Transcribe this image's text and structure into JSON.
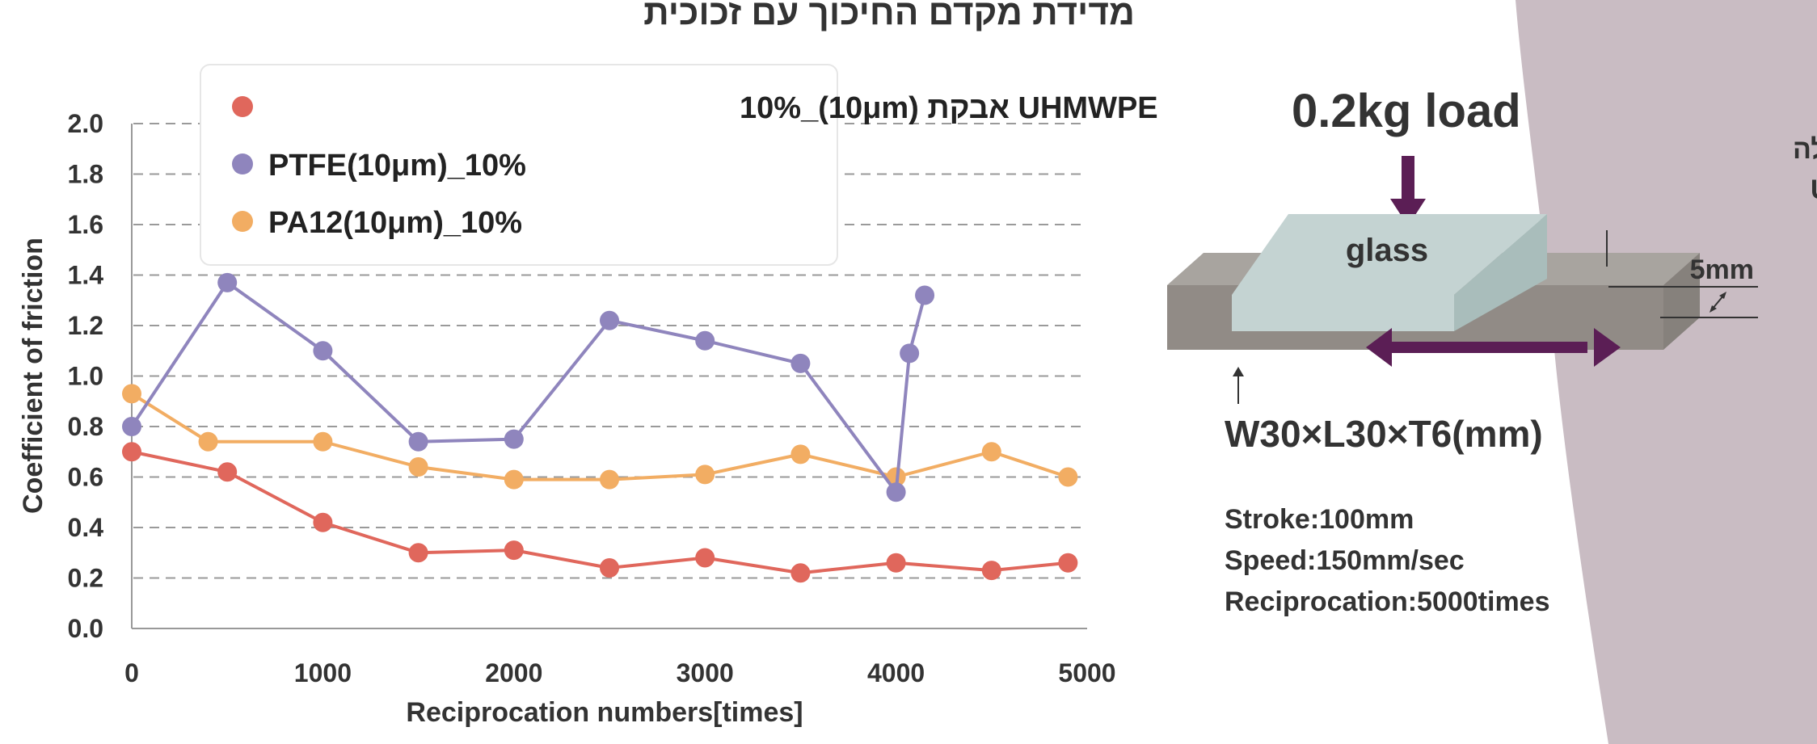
{
  "title": "מדידת מקדם החיכוך עם זכוכית",
  "chart_data": {
    "type": "line",
    "xlabel": "Reciprocation numbers[times]",
    "ylabel": "Coefficient of friction",
    "xlim": [
      0,
      5000
    ],
    "ylim": [
      0,
      2.0
    ],
    "x_ticks": [
      "0",
      "1000",
      "2000",
      "3000",
      "4000",
      "5000"
    ],
    "y_ticks": [
      "0.0",
      "0.2",
      "0.4",
      "0.6",
      "0.8",
      "1.0",
      "1.2",
      "1.4",
      "1.6",
      "1.8",
      "2.0"
    ],
    "grid": "horizontal dashed",
    "legend_position": "top-left",
    "series": [
      {
        "name": "UHMWPE אבקת (10μm)_10%",
        "color": "#e0675c",
        "points": [
          [
            0,
            0.7
          ],
          [
            500,
            0.62
          ],
          [
            1000,
            0.42
          ],
          [
            1500,
            0.3
          ],
          [
            2000,
            0.31
          ],
          [
            2500,
            0.24
          ],
          [
            3000,
            0.28
          ],
          [
            3500,
            0.22
          ],
          [
            4000,
            0.26
          ],
          [
            4500,
            0.23
          ],
          [
            4900,
            0.26
          ]
        ]
      },
      {
        "name": "PTFE(10μm)_10%",
        "color": "#8f85bd",
        "points": [
          [
            0,
            0.8
          ],
          [
            500,
            1.37
          ],
          [
            1000,
            1.1
          ],
          [
            1500,
            0.74
          ],
          [
            2000,
            0.75
          ],
          [
            2500,
            1.22
          ],
          [
            3000,
            1.14
          ],
          [
            3500,
            1.05
          ],
          [
            4000,
            0.54
          ],
          [
            4070,
            1.09
          ],
          [
            4150,
            1.32
          ]
        ]
      },
      {
        "name": "PA12(10μm)_10%",
        "color": "#f2ad63",
        "points": [
          [
            0,
            0.93
          ],
          [
            400,
            0.74
          ],
          [
            1000,
            0.74
          ],
          [
            1500,
            0.64
          ],
          [
            2000,
            0.59
          ],
          [
            2500,
            0.59
          ],
          [
            3000,
            0.61
          ],
          [
            3500,
            0.69
          ],
          [
            4000,
            0.6
          ],
          [
            4500,
            0.7
          ],
          [
            4900,
            0.6
          ]
        ]
      }
    ]
  },
  "diagram": {
    "load_label": "0.2kg load",
    "glass_label": "glass",
    "net_label_line1": "שכבה המכילה",
    "net_label_line2": "תוסף UHMWPE",
    "thickness_label": "5mm",
    "dimension_label": "W30×L30×T6(mm)",
    "specs": [
      "Stroke:100mm",
      "Speed:150mm/sec",
      "Reciprocation:5000times"
    ],
    "arrow_color": "#5b1e55",
    "background_shape_color": "#c9bcc3"
  }
}
